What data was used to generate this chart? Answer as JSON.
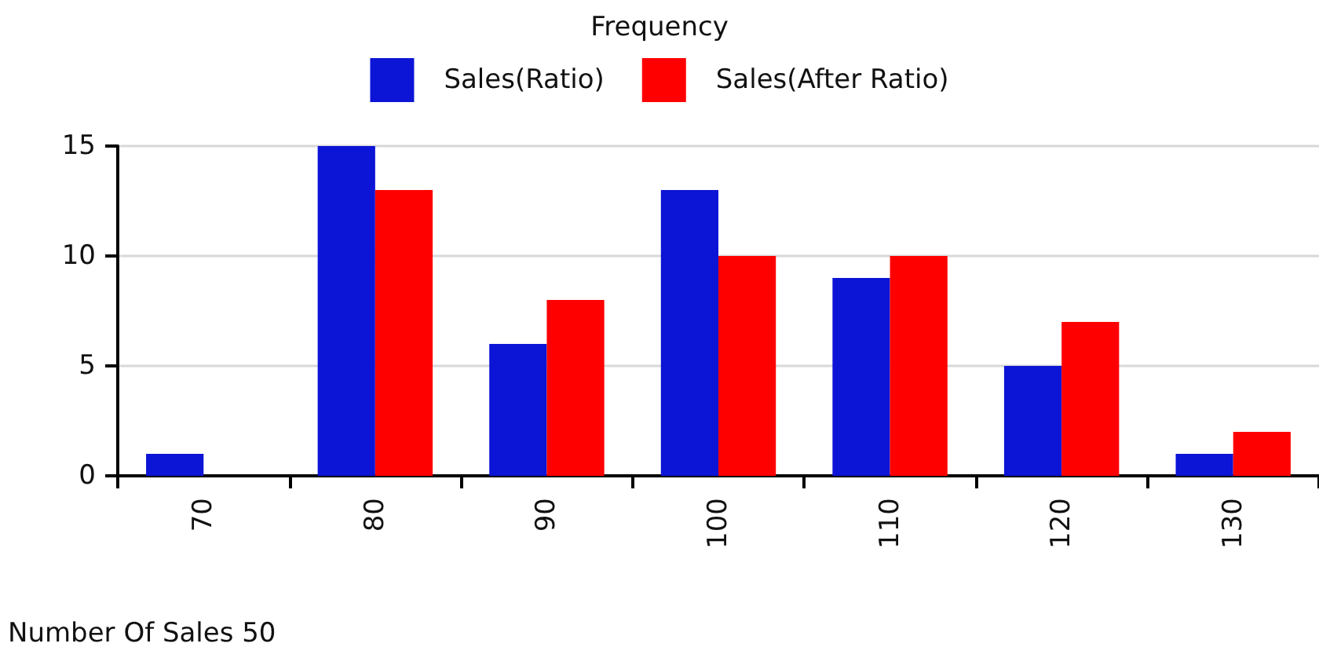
{
  "chart_data": {
    "type": "bar",
    "title": "Frequency",
    "xlabel": "Number Of Sales 50",
    "categories": [
      "70",
      "80",
      "90",
      "100",
      "110",
      "120",
      "130"
    ],
    "series": [
      {
        "name": "Sales(Ratio)",
        "color": "#0c14d6",
        "values": [
          1,
          15,
          6,
          13,
          9,
          5,
          1
        ]
      },
      {
        "name": "Sales(After Ratio)",
        "color": "#ff0000",
        "values": [
          0,
          13,
          8,
          10,
          10,
          7,
          2
        ]
      }
    ],
    "ylim": [
      0,
      15
    ],
    "yticks": [
      0,
      5,
      10,
      15
    ],
    "grid": "y",
    "legend": "top"
  }
}
